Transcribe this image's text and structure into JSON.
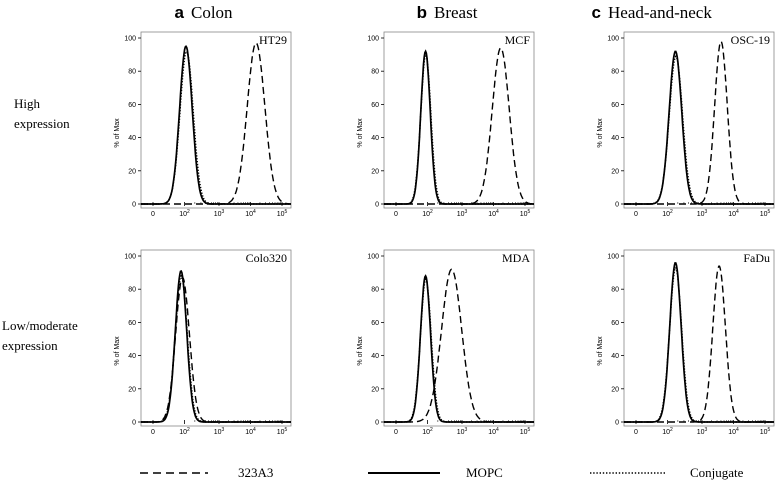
{
  "columns": [
    {
      "letter": "a",
      "title": "Colon"
    },
    {
      "letter": "b",
      "title": "Breast"
    },
    {
      "letter": "c",
      "title": "Head-and-neck"
    }
  ],
  "rows": [
    {
      "label_line1": "High",
      "label_line2": "expression"
    },
    {
      "label_line1": "Low/moderate",
      "label_line2": "expression"
    }
  ],
  "legend": [
    {
      "label": "323A3",
      "style": "dashed"
    },
    {
      "label": "MOPC",
      "style": "solid"
    },
    {
      "label": "Conjugate",
      "style": "dotted"
    }
  ],
  "chart_data": [
    {
      "type": "line",
      "row": 0,
      "col": 0,
      "cell_line": "HT29",
      "ylabel": "% of Max",
      "x_scale": "log",
      "x_ticks": [
        "0",
        "10^2",
        "10^3",
        "10^4",
        "10^5"
      ],
      "y_ticks": [
        0,
        20,
        40,
        60,
        80,
        100
      ],
      "ylim": [
        0,
        100
      ],
      "series": [
        {
          "name": "323A3",
          "style": "dashed",
          "peak_x": 15000,
          "peak_y": 97,
          "width_decades": 0.28
        },
        {
          "name": "MOPC",
          "style": "solid",
          "peak_x": 110,
          "peak_y": 95,
          "width_decades": 0.2
        },
        {
          "name": "Conjugate",
          "style": "dotted",
          "peak_x": 115,
          "peak_y": 92,
          "width_decades": 0.21
        }
      ]
    },
    {
      "type": "line",
      "row": 0,
      "col": 1,
      "cell_line": "MCF",
      "ylabel": "% of Max",
      "x_scale": "log",
      "x_ticks": [
        "0",
        "10^2",
        "10^3",
        "10^4",
        "10^5"
      ],
      "y_ticks": [
        0,
        20,
        40,
        60,
        80,
        100
      ],
      "ylim": [
        0,
        100
      ],
      "series": [
        {
          "name": "323A3",
          "style": "dashed",
          "peak_x": 17000,
          "peak_y": 94,
          "width_decades": 0.27
        },
        {
          "name": "MOPC",
          "style": "solid",
          "peak_x": 75,
          "peak_y": 92,
          "width_decades": 0.15
        },
        {
          "name": "Conjugate",
          "style": "dotted",
          "peak_x": 78,
          "peak_y": 90,
          "width_decades": 0.16
        }
      ]
    },
    {
      "type": "line",
      "row": 0,
      "col": 2,
      "cell_line": "OSC-19",
      "ylabel": "% of Max",
      "x_scale": "log",
      "x_ticks": [
        "0",
        "10^2",
        "10^3",
        "10^4",
        "10^5"
      ],
      "y_ticks": [
        0,
        20,
        40,
        60,
        80,
        100
      ],
      "ylim": [
        0,
        100
      ],
      "series": [
        {
          "name": "323A3",
          "style": "dashed",
          "peak_x": 4000,
          "peak_y": 98,
          "width_decades": 0.2
        },
        {
          "name": "MOPC",
          "style": "solid",
          "peak_x": 170,
          "peak_y": 92,
          "width_decades": 0.2
        },
        {
          "name": "Conjugate",
          "style": "dotted",
          "peak_x": 175,
          "peak_y": 89,
          "width_decades": 0.21
        }
      ]
    },
    {
      "type": "line",
      "row": 1,
      "col": 0,
      "cell_line": "Colo320",
      "ylabel": "% of Max",
      "x_scale": "log",
      "x_ticks": [
        "0",
        "10^2",
        "10^3",
        "10^4",
        "10^5"
      ],
      "y_ticks": [
        0,
        20,
        40,
        60,
        80,
        100
      ],
      "ylim": [
        0,
        100
      ],
      "series": [
        {
          "name": "323A3",
          "style": "dashed",
          "peak_x": 75,
          "peak_y": 87,
          "width_decades": 0.22
        },
        {
          "name": "MOPC",
          "style": "solid",
          "peak_x": 60,
          "peak_y": 91,
          "width_decades": 0.18
        },
        {
          "name": "Conjugate",
          "style": "dotted",
          "peak_x": 62,
          "peak_y": 88,
          "width_decades": 0.19
        }
      ]
    },
    {
      "type": "line",
      "row": 1,
      "col": 1,
      "cell_line": "MDA",
      "ylabel": "% of Max",
      "x_scale": "log",
      "x_ticks": [
        "0",
        "10^2",
        "10^3",
        "10^4",
        "10^5"
      ],
      "y_ticks": [
        0,
        20,
        40,
        60,
        80,
        100
      ],
      "ylim": [
        0,
        100
      ],
      "series": [
        {
          "name": "323A3",
          "style": "dashed",
          "peak_x": 500,
          "peak_y": 92,
          "width_decades": 0.32
        },
        {
          "name": "MOPC",
          "style": "solid",
          "peak_x": 75,
          "peak_y": 88,
          "width_decades": 0.16
        },
        {
          "name": "Conjugate",
          "style": "dotted",
          "peak_x": 78,
          "peak_y": 86,
          "width_decades": 0.17
        }
      ]
    },
    {
      "type": "line",
      "row": 1,
      "col": 2,
      "cell_line": "FaDu",
      "ylabel": "% of Max",
      "x_scale": "log",
      "x_ticks": [
        "0",
        "10^2",
        "10^3",
        "10^4",
        "10^5"
      ],
      "y_ticks": [
        0,
        20,
        40,
        60,
        80,
        100
      ],
      "ylim": [
        0,
        100
      ],
      "series": [
        {
          "name": "323A3",
          "style": "dashed",
          "peak_x": 3500,
          "peak_y": 94,
          "width_decades": 0.2
        },
        {
          "name": "MOPC",
          "style": "solid",
          "peak_x": 170,
          "peak_y": 96,
          "width_decades": 0.18
        },
        {
          "name": "Conjugate",
          "style": "dotted",
          "peak_x": 172,
          "peak_y": 93,
          "width_decades": 0.19
        }
      ]
    }
  ]
}
